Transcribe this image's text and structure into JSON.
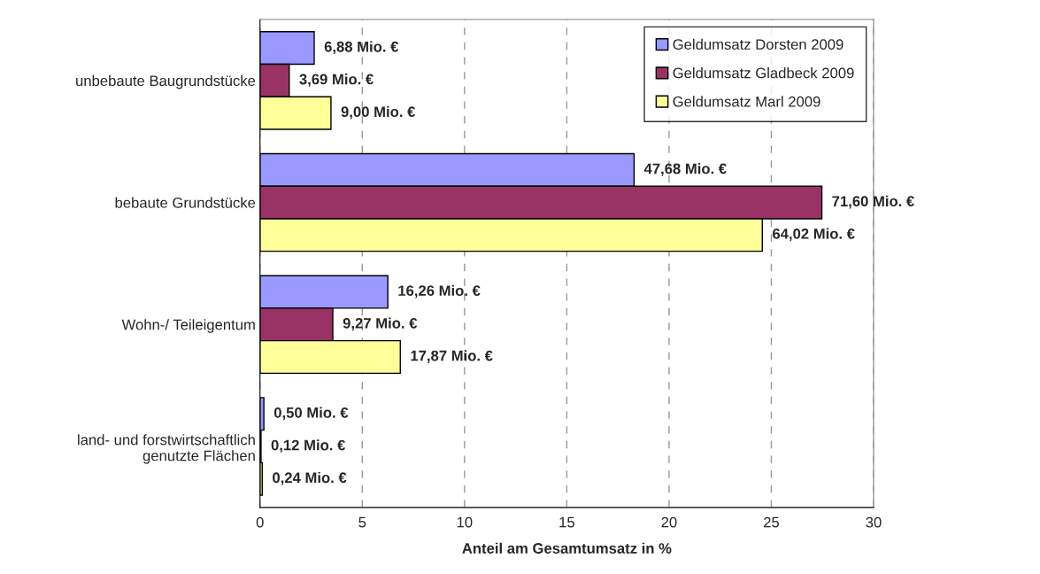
{
  "chart_data": {
    "type": "bar",
    "orientation": "horizontal",
    "xlabel": "Anteil am Gesamtumsatz in %",
    "categories": [
      "unbebaute Baugrundstücke",
      "bebaute Grundstücke",
      "Wohn-/ Teileigentum",
      "land- und forstwirtschaftlich\ngenutzte Flächen"
    ],
    "series": [
      {
        "name": "Geldumsatz Dorsten 2009",
        "color": "#9999ff",
        "values": [
          2.65,
          18.29,
          6.25,
          0.19
        ]
      },
      {
        "name": "Geldumsatz Gladbeck 2009",
        "color": "#993366",
        "values": [
          1.43,
          27.47,
          3.56,
          0.05
        ]
      },
      {
        "name": "Geldumsatz Marl 2009",
        "color": "#ffff99",
        "values": [
          3.47,
          24.56,
          6.86,
          0.11
        ]
      }
    ],
    "annotations": [
      "6,88 Mio. €",
      "3,69 Mio. €",
      "9,00 Mio. €",
      "47,68 Mio. €",
      "71,60 Mio. €",
      "64,02 Mio. €",
      "16,26 Mio. €",
      "9,27 Mio. €",
      "17,87 Mio. €",
      "0,50 Mio. €",
      "0,12 Mio. €",
      "0,24 Mio. €"
    ],
    "xlim": [
      0,
      30
    ],
    "xticks": [
      0,
      5,
      10,
      15,
      20,
      25,
      30
    ],
    "grid": "x",
    "legend": "top right"
  }
}
